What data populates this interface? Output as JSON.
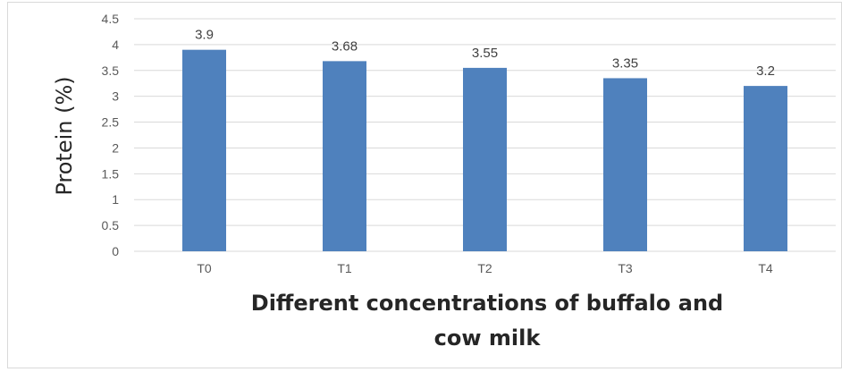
{
  "chart_data": {
    "type": "bar",
    "categories": [
      "T0",
      "T1",
      "T2",
      "T3",
      "T4"
    ],
    "values": [
      3.9,
      3.68,
      3.55,
      3.35,
      3.2
    ],
    "data_labels": [
      "3.9",
      "3.68",
      "3.55",
      "3.35",
      "3.2"
    ],
    "ylabel": "Protein (%)",
    "xlabel_lines": [
      "Different concentrations of buffalo and",
      "cow milk"
    ],
    "ylim": [
      0,
      4.5
    ],
    "yticks": [
      0,
      0.5,
      1,
      1.5,
      2,
      2.5,
      3,
      3.5,
      4,
      4.5
    ],
    "ytick_labels": [
      "0",
      "0.5",
      "1",
      "1.5",
      "2",
      "2.5",
      "3",
      "3.5",
      "4",
      "4.5"
    ],
    "grid": true,
    "legend": "none",
    "bar_color": "#4f81bd",
    "grid_color": "#d9d9d9"
  }
}
